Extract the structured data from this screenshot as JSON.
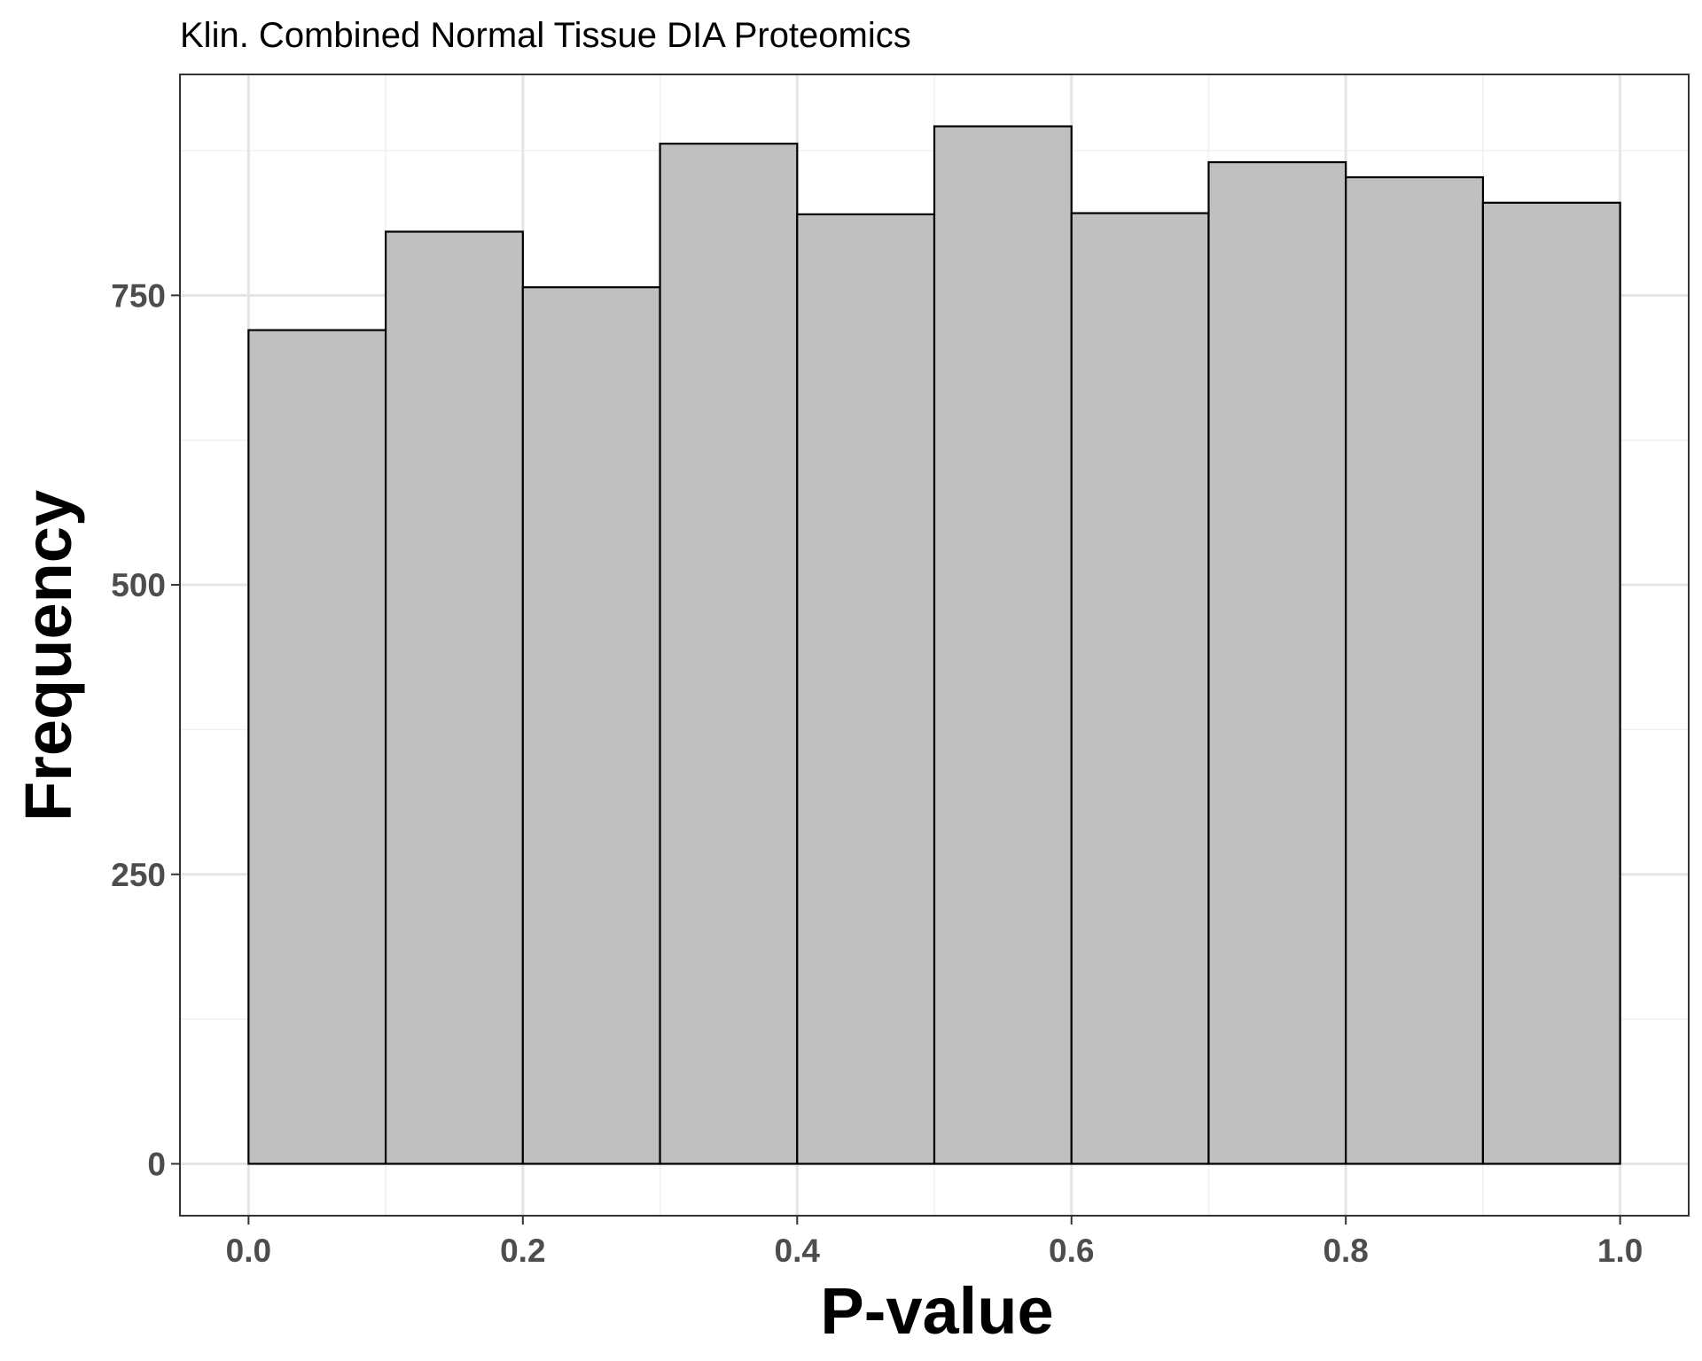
{
  "chart_data": {
    "type": "bar",
    "subtype": "histogram",
    "title": "Klin. Combined Normal Tissue DIA Proteomics",
    "xlabel": "P-value",
    "ylabel": "Frequency",
    "bins": [
      {
        "x0": 0.0,
        "x1": 0.1,
        "count": 720
      },
      {
        "x0": 0.1,
        "x1": 0.2,
        "count": 805
      },
      {
        "x0": 0.2,
        "x1": 0.3,
        "count": 757
      },
      {
        "x0": 0.3,
        "x1": 0.4,
        "count": 881
      },
      {
        "x0": 0.4,
        "x1": 0.5,
        "count": 820
      },
      {
        "x0": 0.5,
        "x1": 0.6,
        "count": 896
      },
      {
        "x0": 0.6,
        "x1": 0.7,
        "count": 821
      },
      {
        "x0": 0.7,
        "x1": 0.8,
        "count": 865
      },
      {
        "x0": 0.8,
        "x1": 0.9,
        "count": 852
      },
      {
        "x0": 0.9,
        "x1": 1.0,
        "count": 830
      }
    ],
    "xlim": [
      -0.05,
      1.05
    ],
    "ylim": [
      -44.8,
      940.8
    ],
    "x_ticks": [
      0.0,
      0.2,
      0.4,
      0.6,
      0.8,
      1.0
    ],
    "x_tick_labels": [
      "0.0",
      "0.2",
      "0.4",
      "0.6",
      "0.8",
      "1.0"
    ],
    "y_ticks": [
      0,
      250,
      500,
      750
    ],
    "y_tick_labels": [
      "0",
      "250",
      "500",
      "750"
    ],
    "grid": true,
    "legend": "none",
    "colors": {
      "bar_fill": "#c0c0c0",
      "bar_stroke": "#000000",
      "grid_major": "#e5e5e5",
      "grid_minor": "#f0f0f0",
      "panel_border": "#333333",
      "tick_label": "#4d4d4d"
    }
  }
}
